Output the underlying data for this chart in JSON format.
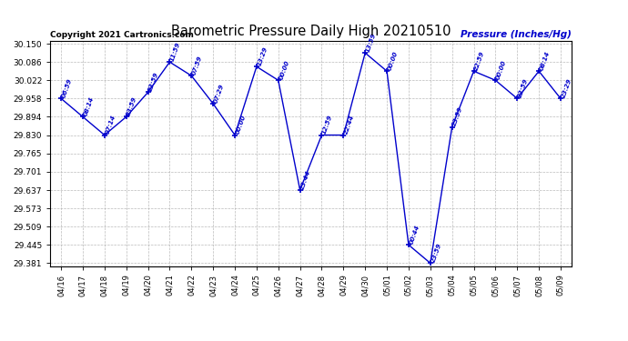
{
  "title": "Barometric Pressure Daily High 20210510",
  "ylabel": "Pressure (Inches/Hg)",
  "copyright": "Copyright 2021 Cartronics.com",
  "background_color": "#ffffff",
  "line_color": "#0000cc",
  "text_color": "#0000cc",
  "ylim": [
    29.381,
    30.15
  ],
  "yticks": [
    29.381,
    29.445,
    29.509,
    29.573,
    29.637,
    29.701,
    29.765,
    29.83,
    29.894,
    29.958,
    30.022,
    30.086,
    30.15
  ],
  "dates": [
    "04/16",
    "04/17",
    "04/18",
    "04/19",
    "04/20",
    "04/21",
    "04/22",
    "04/23",
    "04/24",
    "04/25",
    "04/26",
    "04/27",
    "04/28",
    "04/29",
    "04/30",
    "05/01",
    "05/02",
    "05/03",
    "05/04",
    "05/05",
    "05/06",
    "05/07",
    "05/08",
    "05/09"
  ],
  "points": [
    {
      "date": "04/16",
      "time": "06:59",
      "value": 29.958
    },
    {
      "date": "04/17",
      "time": "08:14",
      "value": 29.894
    },
    {
      "date": "04/18",
      "time": "07:14",
      "value": 29.83
    },
    {
      "date": "04/19",
      "time": "23:59",
      "value": 29.894
    },
    {
      "date": "04/20",
      "time": "23:59",
      "value": 29.98
    },
    {
      "date": "04/21",
      "time": "11:59",
      "value": 30.086
    },
    {
      "date": "04/22",
      "time": "07:59",
      "value": 30.038
    },
    {
      "date": "04/23",
      "time": "07:29",
      "value": 29.94
    },
    {
      "date": "04/24",
      "time": "00:00",
      "value": 29.83
    },
    {
      "date": "04/25",
      "time": "13:29",
      "value": 30.07
    },
    {
      "date": "04/26",
      "time": "00:00",
      "value": 30.022
    },
    {
      "date": "04/27",
      "time": "23:44",
      "value": 29.637
    },
    {
      "date": "04/28",
      "time": "12:59",
      "value": 29.83
    },
    {
      "date": "04/29",
      "time": "22:44",
      "value": 29.83
    },
    {
      "date": "04/30",
      "time": "13:59",
      "value": 30.118
    },
    {
      "date": "05/01",
      "time": "00:00",
      "value": 30.054
    },
    {
      "date": "05/02",
      "time": "00:44",
      "value": 29.445
    },
    {
      "date": "05/03",
      "time": "23:59",
      "value": 29.381
    },
    {
      "date": "05/04",
      "time": "23:59",
      "value": 29.858
    },
    {
      "date": "05/05",
      "time": "22:59",
      "value": 30.054
    },
    {
      "date": "05/06",
      "time": "00:00",
      "value": 30.022
    },
    {
      "date": "05/07",
      "time": "23:59",
      "value": 29.958
    },
    {
      "date": "05/08",
      "time": "08:14",
      "value": 30.054
    },
    {
      "date": "05/09",
      "time": "23:29",
      "value": 29.958
    }
  ]
}
